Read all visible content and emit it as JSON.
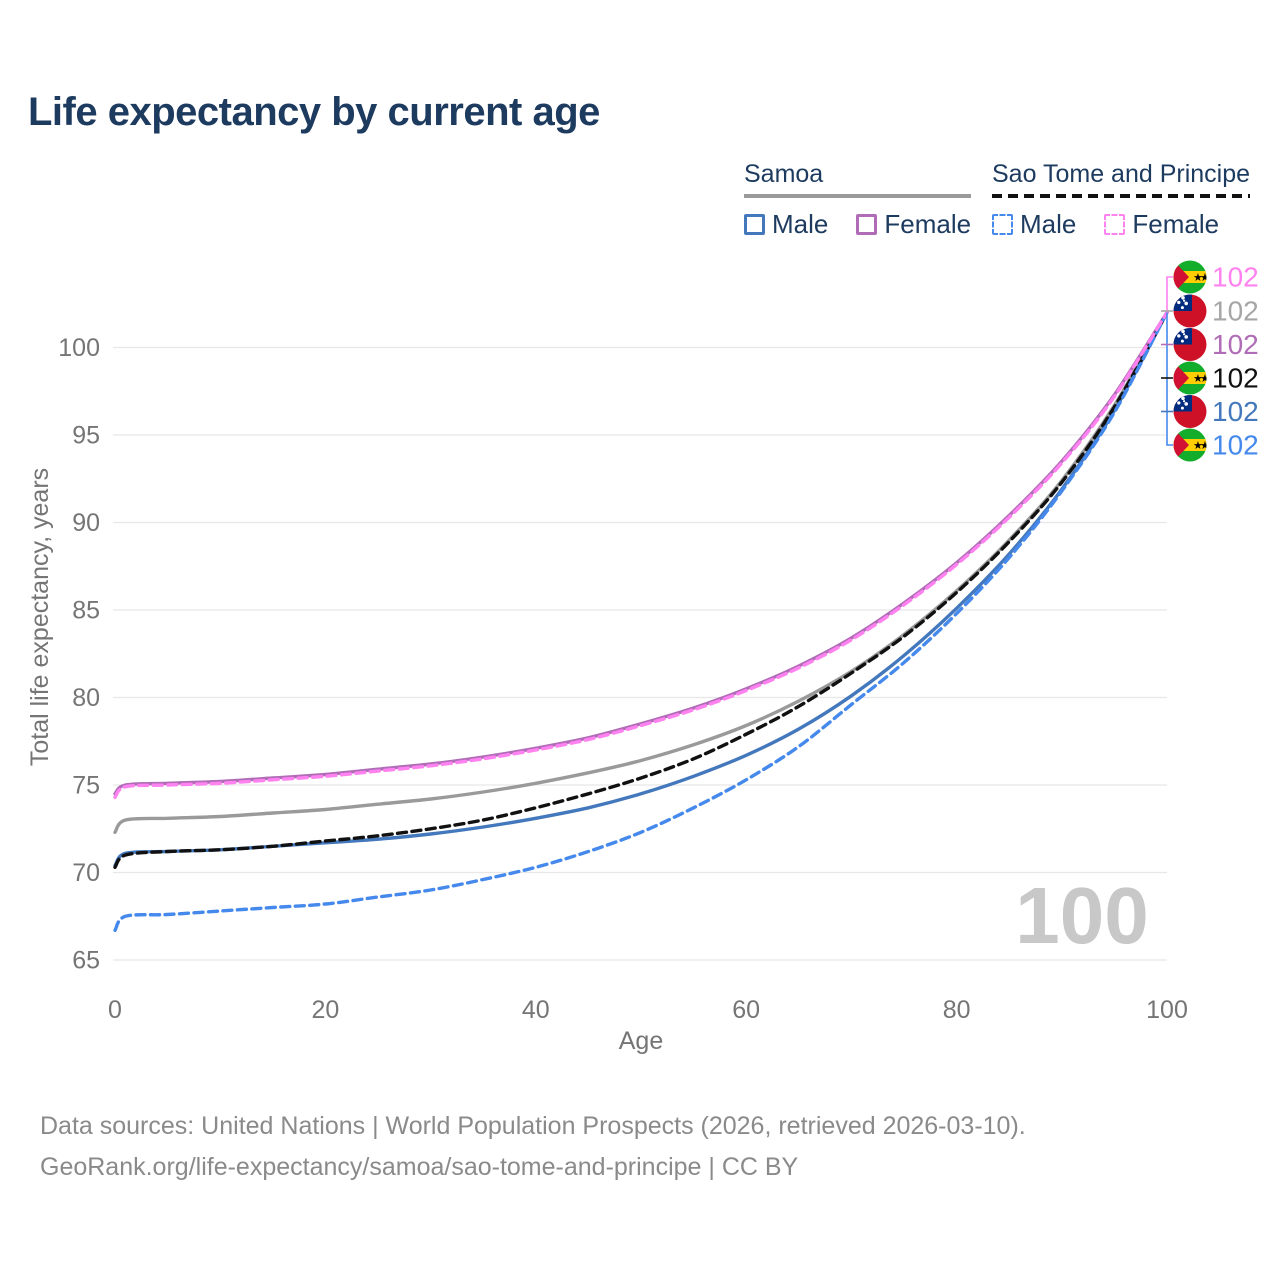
{
  "page": {
    "title": "Life expectancy by current age"
  },
  "legend": {
    "groups": [
      {
        "name": "Samoa",
        "line_style": "solid",
        "underline_key": "samoa_both",
        "items": [
          {
            "label": "Male",
            "color_key": "samoa_male"
          },
          {
            "label": "Female",
            "color_key": "samoa_female"
          }
        ]
      },
      {
        "name": "Sao Tome and Principe",
        "line_style": "dashed",
        "underline_key": "st_both",
        "items": [
          {
            "label": "Male",
            "color_key": "st_male"
          },
          {
            "label": "Female",
            "color_key": "st_female"
          }
        ]
      }
    ]
  },
  "colors": {
    "samoa_male": "#4478bc",
    "samoa_female": "#b06cb6",
    "samoa_both": "#9a9a9a",
    "st_male": "#4589ec",
    "st_female": "#ff82f0",
    "st_both": "#111111",
    "end_label_gray": "#a6a6a6",
    "title_text": "#1d3a5f",
    "axis_text": "#757575",
    "grid": "#e7e7e7",
    "watermark": "#c8c8c8",
    "footer_text": "#8a8a8a",
    "flag_samoa_red": "#ce1126",
    "flag_samoa_blue": "#002b7f",
    "flag_st_green": "#12ad2b",
    "flag_st_yellow": "#ffce00",
    "flag_st_red": "#d21034"
  },
  "axes": {
    "x_label": "Age",
    "y_label": "Total life expectancy, years"
  },
  "watermark": "100",
  "chart_data": {
    "type": "line",
    "title": "Life expectancy by current age",
    "xlabel": "Age",
    "ylabel": "Total life expectancy, years",
    "grid": "horizontal",
    "legend_position": "top-right",
    "x_ticks": [
      0,
      20,
      40,
      60,
      80,
      100
    ],
    "y_ticks": [
      65,
      70,
      75,
      80,
      85,
      90,
      95,
      100
    ],
    "x_range": [
      0,
      100
    ],
    "y_range": [
      65,
      103.5
    ],
    "current_age_indicator": 100,
    "x": [
      0,
      1,
      5,
      10,
      15,
      20,
      25,
      30,
      35,
      40,
      45,
      50,
      55,
      60,
      65,
      70,
      75,
      80,
      85,
      90,
      95,
      100
    ],
    "series": [
      {
        "key": "samoa_both",
        "name": "Samoa",
        "country": "Samoa",
        "sex": "both",
        "dash": false,
        "end_value": 102,
        "values": [
          72.3,
          73.0,
          73.1,
          73.2,
          73.4,
          73.6,
          73.9,
          74.2,
          74.6,
          75.1,
          75.7,
          76.4,
          77.3,
          78.4,
          79.8,
          81.5,
          83.6,
          86.1,
          89.0,
          92.4,
          96.7,
          102
        ]
      },
      {
        "key": "samoa_female",
        "name": "Samoa Female",
        "country": "Samoa",
        "sex": "female",
        "dash": false,
        "end_value": 102,
        "values": [
          74.5,
          75.0,
          75.1,
          75.2,
          75.4,
          75.6,
          75.9,
          76.2,
          76.6,
          77.1,
          77.7,
          78.5,
          79.4,
          80.5,
          81.8,
          83.4,
          85.4,
          87.7,
          90.4,
          93.5,
          97.3,
          102
        ]
      },
      {
        "key": "samoa_male",
        "name": "Samoa Male",
        "country": "Samoa",
        "sex": "male",
        "dash": false,
        "end_value": 102,
        "values": [
          70.4,
          71.1,
          71.2,
          71.3,
          71.5,
          71.7,
          71.9,
          72.2,
          72.6,
          73.1,
          73.7,
          74.5,
          75.5,
          76.7,
          78.2,
          80.1,
          82.4,
          85.1,
          88.2,
          91.9,
          96.4,
          102
        ]
      },
      {
        "key": "st_both",
        "name": "Sao Tome and Principe",
        "country": "Sao Tome and Principe",
        "sex": "both",
        "dash": true,
        "end_value": 102,
        "values": [
          70.3,
          71.0,
          71.2,
          71.3,
          71.5,
          71.8,
          72.1,
          72.5,
          73.0,
          73.7,
          74.5,
          75.4,
          76.5,
          77.9,
          79.5,
          81.4,
          83.5,
          86.0,
          88.9,
          92.3,
          96.6,
          102
        ]
      },
      {
        "key": "st_male",
        "name": "Sao Tome and Principe Male",
        "country": "Sao Tome and Principe",
        "sex": "male",
        "dash": true,
        "end_value": 102,
        "values": [
          66.7,
          67.5,
          67.6,
          67.8,
          68.0,
          68.2,
          68.6,
          69.0,
          69.6,
          70.3,
          71.2,
          72.3,
          73.7,
          75.3,
          77.2,
          79.6,
          82.0,
          84.8,
          88.0,
          91.8,
          96.3,
          102
        ]
      },
      {
        "key": "st_female",
        "name": "Sao Tome and Principe Female",
        "country": "Sao Tome and Principe",
        "sex": "female",
        "dash": true,
        "end_value": 102,
        "values": [
          74.3,
          74.9,
          75.0,
          75.1,
          75.3,
          75.5,
          75.8,
          76.1,
          76.5,
          77.0,
          77.6,
          78.4,
          79.3,
          80.4,
          81.7,
          83.3,
          85.3,
          87.6,
          90.3,
          93.4,
          97.2,
          102
        ]
      }
    ]
  },
  "end_labels": [
    {
      "flag": "st",
      "value": "102",
      "color_key": "st_female"
    },
    {
      "flag": "samoa",
      "value": "102",
      "color_key": "end_label_gray"
    },
    {
      "flag": "samoa",
      "value": "102",
      "color_key": "samoa_female"
    },
    {
      "flag": "st",
      "value": "102",
      "color_key": "st_both"
    },
    {
      "flag": "samoa",
      "value": "102",
      "color_key": "samoa_male"
    },
    {
      "flag": "st",
      "value": "102",
      "color_key": "st_male"
    }
  ],
  "footer": {
    "line1": "Data sources: United Nations | World Population Prospects (2026, retrieved 2026-03-10).",
    "line2": "GeoRank.org/life-expectancy/samoa/sao-tome-and-principe | CC BY"
  }
}
